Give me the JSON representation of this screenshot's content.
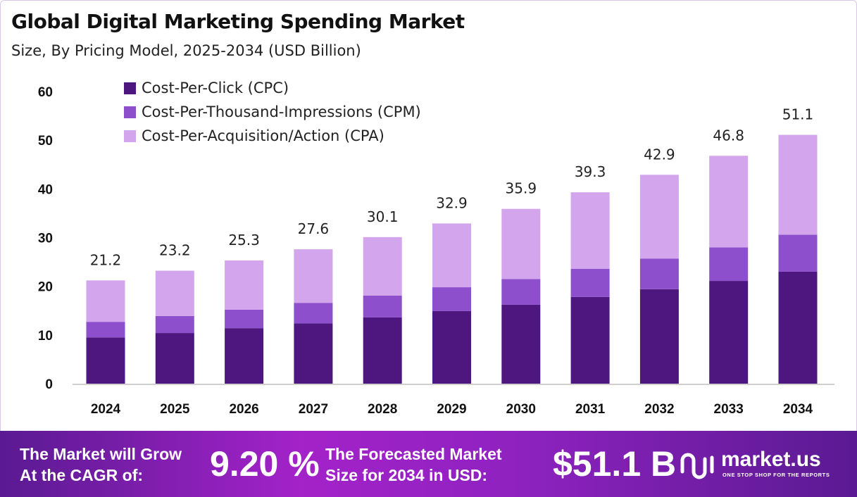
{
  "title": "Global Digital Marketing Spending Market",
  "subtitle": "Size, By Pricing Model, 2025-2034 (USD Billion)",
  "colors": {
    "cpc": "#4e1780",
    "cpm": "#8d4fcb",
    "cpa": "#d3a5ec",
    "footer": "#a322c9"
  },
  "chart_data": {
    "type": "bar",
    "stacked": true,
    "categories": [
      "2024",
      "2025",
      "2026",
      "2027",
      "2028",
      "2029",
      "2030",
      "2031",
      "2032",
      "2033",
      "2034"
    ],
    "series": [
      {
        "name": "Cost-Per-Click (CPC)",
        "values": [
          9.5,
          10.4,
          11.4,
          12.4,
          13.6,
          14.9,
          16.2,
          17.8,
          19.4,
          21.1,
          23.0
        ]
      },
      {
        "name": "Cost-Per-Thousand-Impressions (CPM)",
        "values": [
          3.2,
          3.5,
          3.8,
          4.2,
          4.5,
          4.9,
          5.3,
          5.8,
          6.3,
          6.9,
          7.6
        ]
      },
      {
        "name": "Cost-Per-Acquisition/Action (CPA)",
        "values": [
          8.5,
          9.3,
          10.1,
          11.0,
          12.0,
          13.1,
          14.4,
          15.7,
          17.2,
          18.8,
          20.5
        ]
      }
    ],
    "totals": [
      "21.2",
      "23.2",
      "25.3",
      "27.6",
      "30.1",
      "32.9",
      "35.9",
      "39.3",
      "42.9",
      "46.8",
      "51.1"
    ],
    "yticks": [
      "0",
      "10",
      "20",
      "30",
      "40",
      "50",
      "60"
    ],
    "ylim": [
      0,
      60
    ],
    "grid": false,
    "legend_position": "top-left"
  },
  "footer": {
    "cagr_label_1": "The Market will Grow",
    "cagr_label_2": "At the CAGR of:",
    "cagr_value": "9.20 %",
    "forecast_label_1": "The Forecasted Market",
    "forecast_label_2": "Size for 2034 in USD:",
    "forecast_value": "$51.1 B",
    "brand": "market.us",
    "tagline": "ONE STOP SHOP FOR THE REPORTS"
  }
}
